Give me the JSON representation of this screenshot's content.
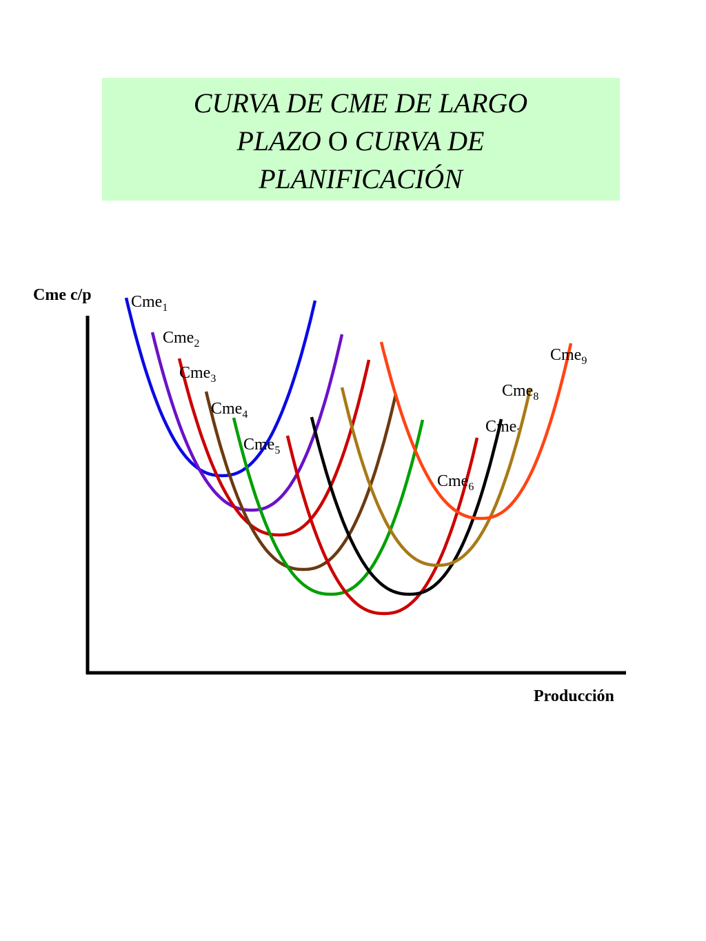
{
  "title": [
    "CURVA DE CME DE LARGO",
    "PLAZO",
    "O",
    "CURVA DE",
    "PLANIFICACIÓN"
  ],
  "y_axis_label": "Cme c/p",
  "x_axis_label": "Producción",
  "curves": [
    {
      "label": "Cme",
      "subscript": "1",
      "color": "#0a0ae6"
    },
    {
      "label": "Cme",
      "subscript": "2",
      "color": "#6a12c8"
    },
    {
      "label": "Cme",
      "subscript": "3",
      "color": "#cc0000"
    },
    {
      "label": "Cme",
      "subscript": "4",
      "color": "#6b3a12"
    },
    {
      "label": "Cme",
      "subscript": "5",
      "color": "#00a000"
    },
    {
      "label": "Cme",
      "subscript": "6",
      "color": "#cc0000"
    },
    {
      "label": "Cme",
      "subscript": "7",
      "color": "#000000"
    },
    {
      "label": "Cme",
      "subscript": "8",
      "color": "#a87a16"
    },
    {
      "label": "Cme",
      "subscript": "9",
      "color": "#ff4414"
    }
  ]
}
